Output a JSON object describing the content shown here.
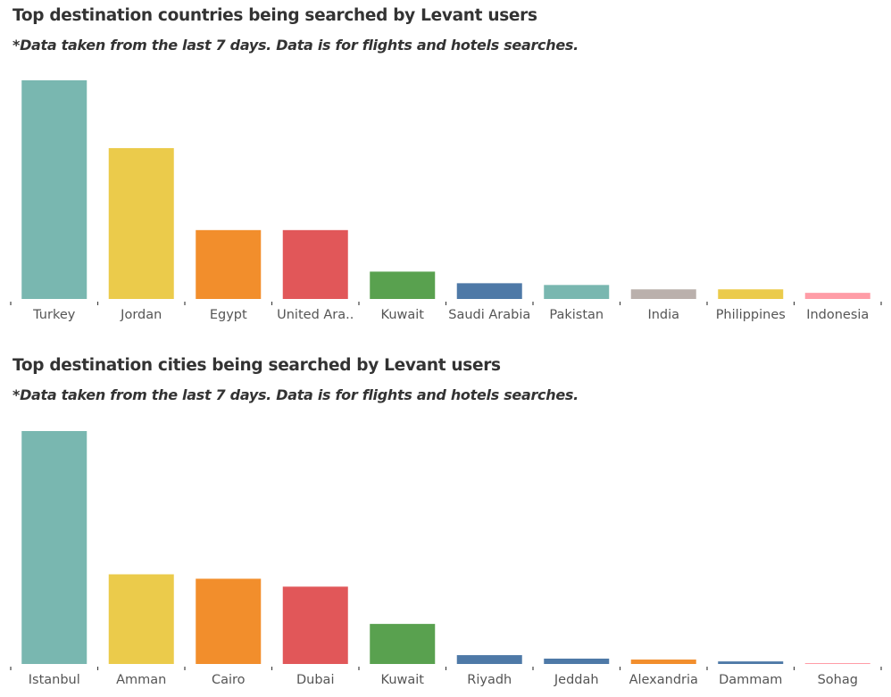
{
  "colors": {
    "teal": "#79b7b0",
    "yellow": "#ebcb4b",
    "orange": "#f28e2c",
    "red": "#e15759",
    "green": "#59a14f",
    "blue": "#4e79a7",
    "gray": "#bab0ac",
    "pink": "#ff9da7",
    "text": "#333333",
    "tick_label": "#555555"
  },
  "chart_data": [
    {
      "type": "bar",
      "title": "Top destination countries being searched by Levant users",
      "subtitle": "*Data taken from the last 7 days. Data is for flights and hotels searches.",
      "categories": [
        "Turkey",
        "Jordan",
        "Egypt",
        "United Ara..",
        "Kuwait",
        "Saudi Arabia",
        "Pakistan",
        "India",
        "Philippines",
        "Indonesia"
      ],
      "values": [
        100,
        69,
        31.5,
        31.5,
        12.5,
        7.2,
        6.4,
        4.4,
        4.4,
        2.8
      ],
      "colors": [
        "#79b7b0",
        "#ebcb4b",
        "#f28e2c",
        "#e15759",
        "#59a14f",
        "#4e79a7",
        "#79b7b0",
        "#bab0ac",
        "#ebcb4b",
        "#ff9da7"
      ],
      "xlabel": "",
      "ylabel": "",
      "ylim": [
        0,
        100
      ],
      "grid": false,
      "y_axis_shown": false
    },
    {
      "type": "bar",
      "title": "Top destination cities being searched by Levant users",
      "subtitle": "*Data taken from the last 7 days. Data is for flights and hotels searches.",
      "categories": [
        "Istanbul",
        "Amman",
        "Cairo",
        "Dubai",
        "Kuwait",
        "Riyadh",
        "Jeddah",
        "Alexandria",
        "Dammam",
        "Sohag"
      ],
      "values": [
        100,
        38.5,
        36.6,
        33.2,
        17.2,
        3.8,
        2.3,
        1.9,
        1.1,
        0.2
      ],
      "colors": [
        "#79b7b0",
        "#ebcb4b",
        "#f28e2c",
        "#e15759",
        "#59a14f",
        "#4e79a7",
        "#4e79a7",
        "#f28e2c",
        "#4e79a7",
        "#ff9da7"
      ],
      "xlabel": "",
      "ylabel": "",
      "ylim": [
        0,
        100
      ],
      "grid": false,
      "y_axis_shown": false
    }
  ]
}
